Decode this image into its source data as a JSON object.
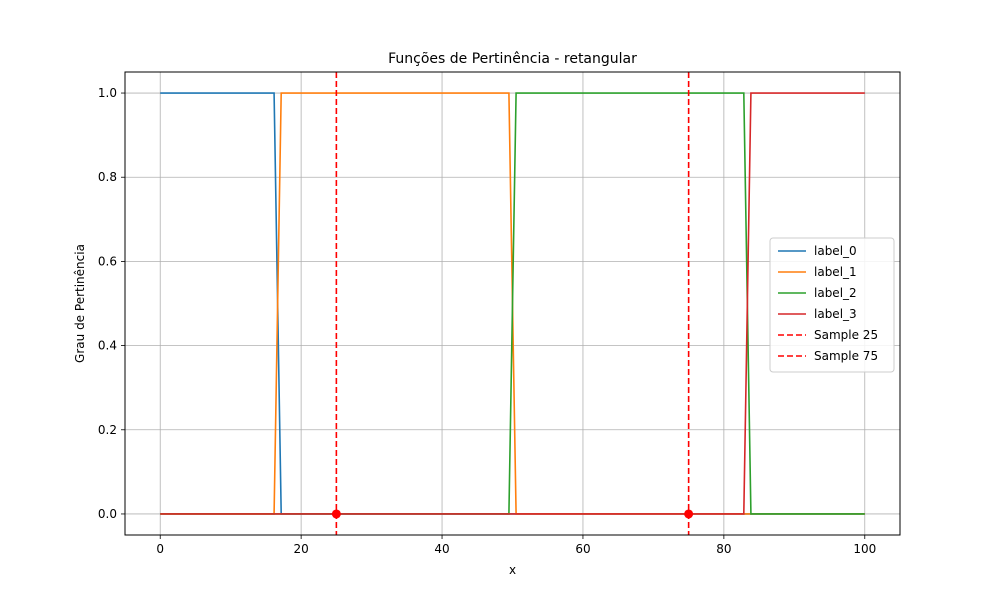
{
  "chart_data": {
    "type": "line",
    "title": "Funções de Pertinência - retangular",
    "xlabel": "x",
    "ylabel": "Grau de Pertinência",
    "xlim": [
      -5,
      105
    ],
    "ylim": [
      -0.05,
      1.05
    ],
    "xticks": [
      0,
      20,
      40,
      60,
      80,
      100
    ],
    "xtick_labels": [
      "0",
      "20",
      "40",
      "60",
      "80",
      "100"
    ],
    "yticks": [
      0.0,
      0.2,
      0.4,
      0.6,
      0.8,
      1.0
    ],
    "ytick_labels": [
      "0.0",
      "0.2",
      "0.4",
      "0.6",
      "0.8",
      "1.0"
    ],
    "grid": true,
    "legend_position": "center-right",
    "series": [
      {
        "name": "label_0",
        "color": "#1f77b4",
        "x": [
          0,
          16.16,
          17.17,
          100
        ],
        "y": [
          1,
          1,
          0,
          0
        ]
      },
      {
        "name": "label_1",
        "color": "#ff7f0e",
        "x": [
          0,
          16.16,
          17.17,
          49.49,
          50.51,
          100
        ],
        "y": [
          0,
          0,
          1,
          1,
          0,
          0
        ]
      },
      {
        "name": "label_2",
        "color": "#2ca02c",
        "x": [
          0,
          49.49,
          50.51,
          82.83,
          83.84,
          100
        ],
        "y": [
          0,
          0,
          1,
          1,
          0,
          0
        ]
      },
      {
        "name": "label_3",
        "color": "#d62728",
        "x": [
          0,
          82.83,
          83.84,
          100
        ],
        "y": [
          0,
          0,
          1,
          1
        ]
      }
    ],
    "vlines": [
      {
        "name": "Sample 25",
        "x": 25,
        "color": "#ff0000",
        "style": "dashed",
        "marker_y": 0
      },
      {
        "name": "Sample 75",
        "x": 75,
        "color": "#ff0000",
        "style": "dashed",
        "marker_y": 0
      }
    ]
  }
}
